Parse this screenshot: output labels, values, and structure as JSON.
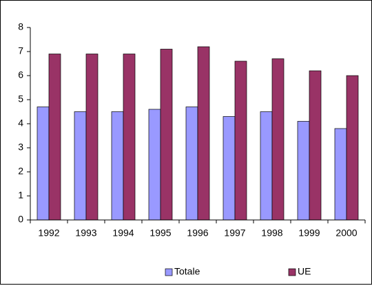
{
  "chart_data": {
    "type": "bar",
    "categories": [
      "1992",
      "1993",
      "1994",
      "1995",
      "1996",
      "1997",
      "1998",
      "1999",
      "2000"
    ],
    "series": [
      {
        "name": "Totale",
        "color": "#9999ff",
        "values": [
          4.7,
          4.5,
          4.5,
          4.6,
          4.7,
          4.3,
          4.5,
          4.1,
          3.8
        ]
      },
      {
        "name": "UE",
        "color": "#993366",
        "values": [
          6.9,
          6.9,
          6.9,
          7.1,
          7.2,
          6.6,
          6.7,
          6.2,
          6.0
        ]
      }
    ],
    "ylim": [
      0,
      8
    ],
    "yticks": [
      0,
      1,
      2,
      3,
      4,
      5,
      6,
      7,
      8
    ],
    "grid": false,
    "legend": "bottom"
  }
}
